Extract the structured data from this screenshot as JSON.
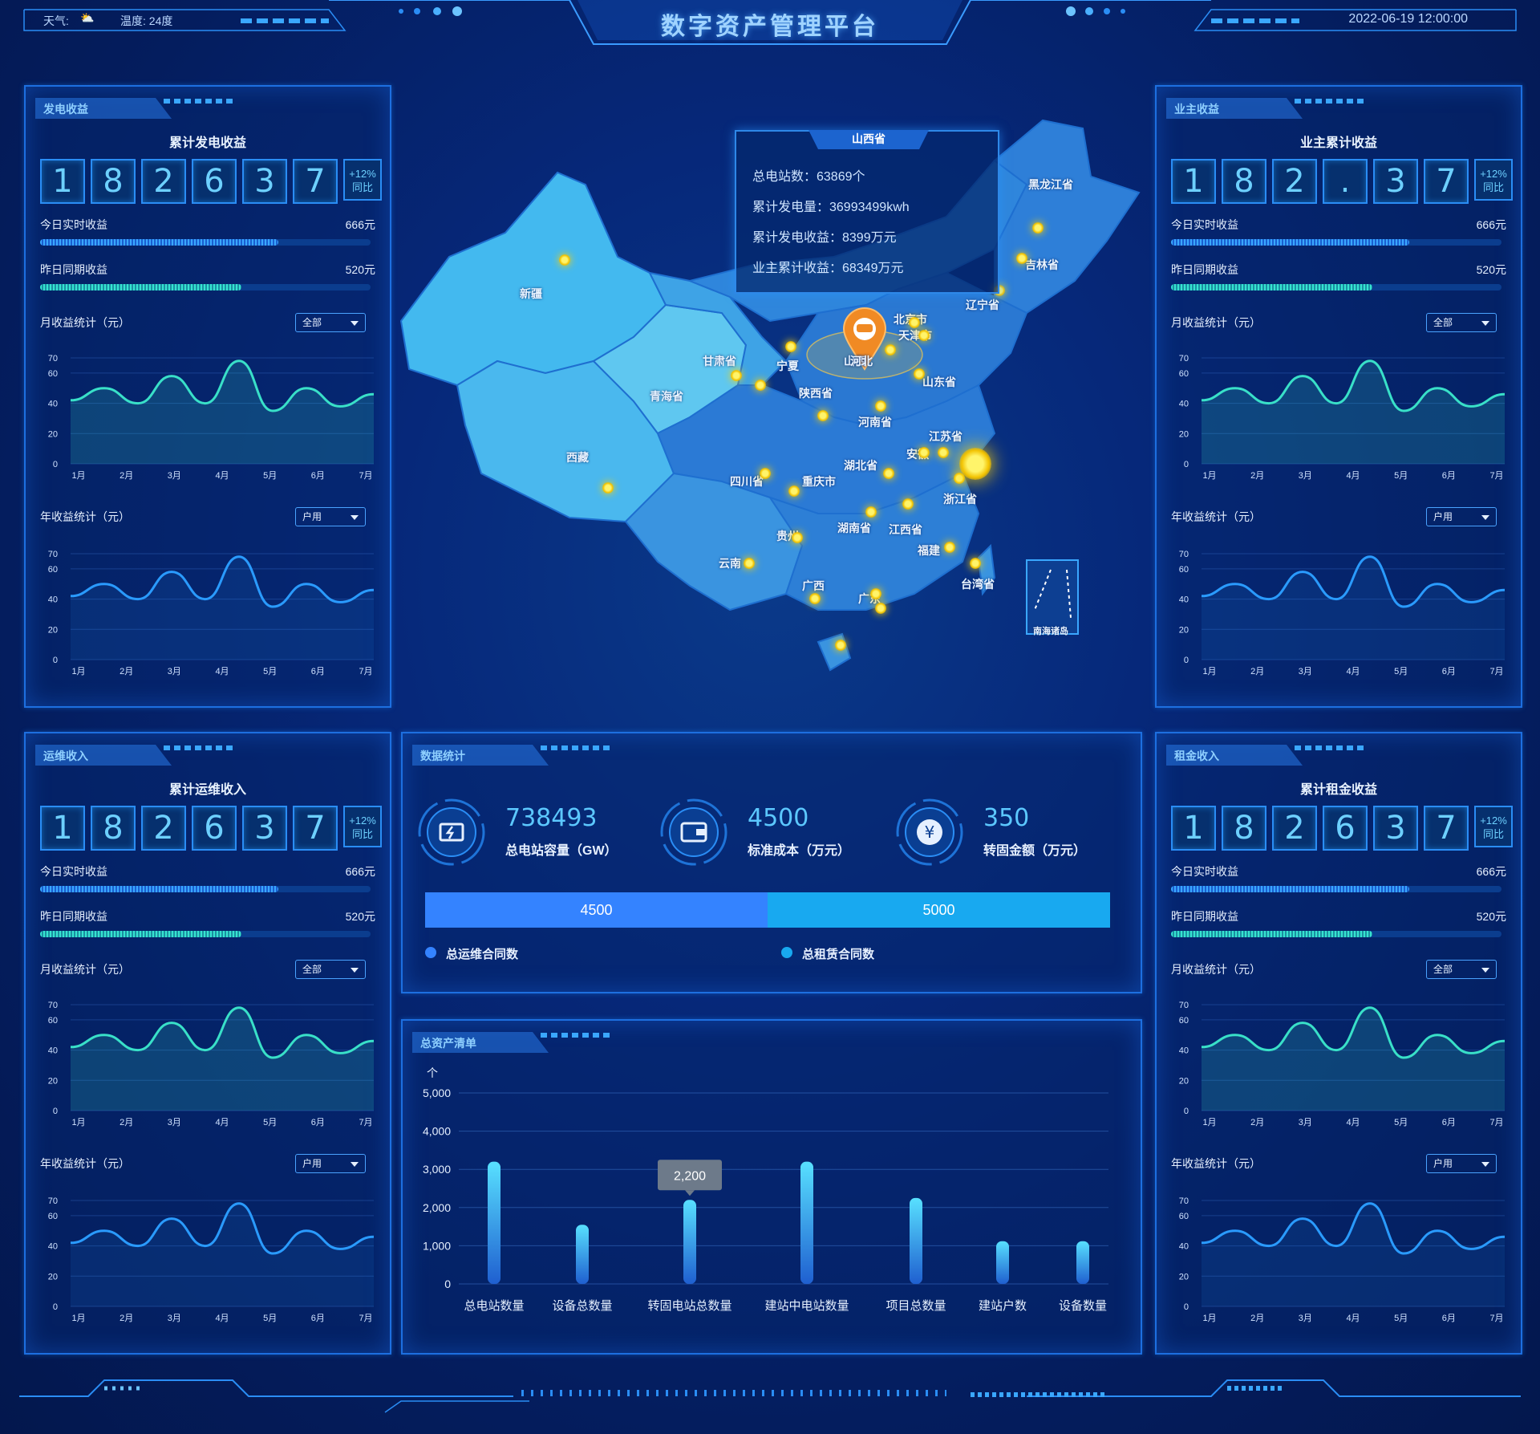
{
  "header": {
    "title": "数字资产管理平台",
    "weather_label": "天气:",
    "temp_label": "温度: 24度",
    "datetime": "2022-06-19 12:00:00"
  },
  "colors": {
    "accent": "#2a8df5",
    "cyan": "#36e3d0",
    "teal_line": "#39e0c8",
    "blue_line": "#2a9bff",
    "dot": "#ffd400"
  },
  "month_labels": [
    "1月",
    "2月",
    "3月",
    "4月",
    "5月",
    "6月",
    "7月"
  ],
  "y_ticks": [
    "70",
    "60",
    "40",
    "20",
    "0"
  ],
  "panels": {
    "power": {
      "tag": "发电收益",
      "sub_title": "累计发电收益",
      "digits": [
        "1",
        "8",
        "2",
        "6",
        "3",
        "7"
      ],
      "yoy_pct": "+12%",
      "yoy_label": "同比",
      "today_label": "今日实时收益",
      "today_value": "666元",
      "today_fill": 0.72,
      "yesterday_label": "昨日同期收益",
      "yesterday_value": "520元",
      "yesterday_fill": 0.61,
      "monthly_label": "月收益统计（元）",
      "monthly_select": "全部",
      "yearly_label": "年收益统计（元）",
      "yearly_select": "户用"
    },
    "owner": {
      "tag": "业主收益",
      "sub_title": "业主累计收益",
      "digits": [
        "1",
        "8",
        "2",
        ".",
        "3",
        "7"
      ],
      "yoy_pct": "+12%",
      "yoy_label": "同比",
      "today_label": "今日实时收益",
      "today_value": "666元",
      "today_fill": 0.72,
      "yesterday_label": "昨日同期收益",
      "yesterday_value": "520元",
      "yesterday_fill": 0.61,
      "monthly_label": "月收益统计（元）",
      "monthly_select": "全部",
      "yearly_label": "年收益统计（元）",
      "yearly_select": "户用"
    },
    "ops": {
      "tag": "运维收入",
      "sub_title": "累计运维收入",
      "digits": [
        "1",
        "8",
        "2",
        "6",
        "3",
        "7"
      ],
      "yoy_pct": "+12%",
      "yoy_label": "同比",
      "today_label": "今日实时收益",
      "today_value": "666元",
      "today_fill": 0.72,
      "yesterday_label": "昨日同期收益",
      "yesterday_value": "520元",
      "yesterday_fill": 0.61,
      "monthly_label": "月收益统计（元）",
      "monthly_select": "全部",
      "yearly_label": "年收益统计（元）",
      "yearly_select": "户用"
    },
    "rent": {
      "tag": "租金收入",
      "sub_title": "累计租金收益",
      "digits": [
        "1",
        "8",
        "2",
        "6",
        "3",
        "7"
      ],
      "yoy_pct": "+12%",
      "yoy_label": "同比",
      "today_label": "今日实时收益",
      "today_value": "666元",
      "today_fill": 0.72,
      "yesterday_label": "昨日同期收益",
      "yesterday_value": "520元",
      "yesterday_fill": 0.61,
      "monthly_label": "月收益统计（元）",
      "monthly_select": "全部",
      "yearly_label": "年收益统计（元）",
      "yearly_select": "户用"
    }
  },
  "curve_values": [
    42,
    50,
    40,
    58,
    40,
    68,
    35,
    50,
    38,
    46
  ],
  "stats": {
    "tag": "数据统计",
    "items": [
      {
        "icon": "battery-icon",
        "value": "738493",
        "label": "总电站容量（GW）"
      },
      {
        "icon": "wallet-icon",
        "value": "4500",
        "label": "标准成本（万元）"
      },
      {
        "icon": "yuan-icon",
        "value": "350",
        "label": "转固金额（万元）"
      }
    ],
    "split": {
      "left_value": "4500",
      "right_value": "5000",
      "left_share": 0.5,
      "left_label": "总运维合同数",
      "right_label": "总租赁合同数",
      "left_color": "#3483ff",
      "right_color": "#18a9f0"
    }
  },
  "map": {
    "tooltip_title": "山西省",
    "tooltip_rows": [
      "总电站数：63869个",
      "累计发电量：36993499kwh",
      "累计发电收益：8399万元",
      "业主累计收益：68349万元"
    ],
    "provinces": [
      "新疆",
      "西藏",
      "青海省",
      "甘肃省",
      "宁夏",
      "陕西省",
      "山西",
      "河南省",
      "山东省",
      "江苏省",
      "安徽",
      "湖北省",
      "四川省",
      "重庆市",
      "贵州",
      "湖南省",
      "江西省",
      "云南",
      "广西",
      "广东",
      "福建",
      "浙江省",
      "台湾省",
      "黑龙江省",
      "吉林省",
      "辽宁省",
      "北京市",
      "天津市",
      "河北",
      "南海诸岛"
    ]
  },
  "chart_data": {
    "type": "bar",
    "title": "总资产清单",
    "ylabel": "个",
    "categories": [
      "总电站数量",
      "设备总数量",
      "转固电站总数量",
      "建站中电站数量",
      "项目总数量",
      "建站户数",
      "设备数量"
    ],
    "values": [
      3200,
      1550,
      2200,
      3200,
      2250,
      1120,
      1120
    ],
    "ylim": [
      0,
      5000
    ],
    "y_ticks": [
      "5,000",
      "4,000",
      "3,000",
      "2,000",
      "1,000",
      "0"
    ],
    "tooltip_value": "2,200",
    "grid": true
  }
}
